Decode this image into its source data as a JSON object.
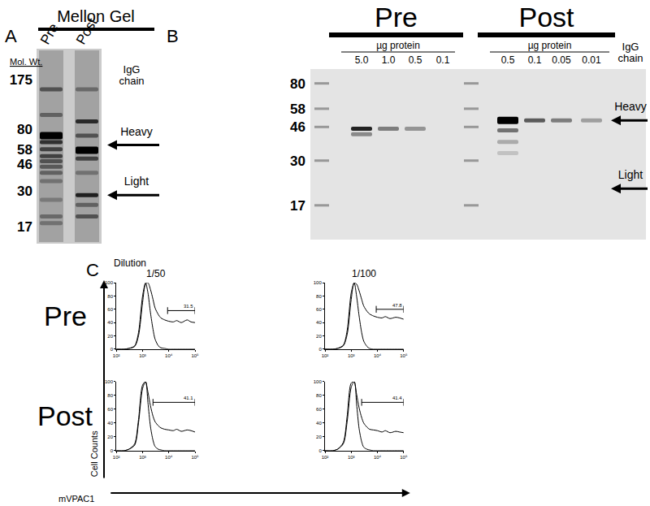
{
  "panel_a": {
    "label": "A",
    "title": "Mellon Gel",
    "lanes": [
      {
        "name": "Pre",
        "bands": [
          {
            "mw": 150,
            "intensity": 0.5
          },
          {
            "mw": 100,
            "intensity": 0.4
          },
          {
            "mw": 72,
            "intensity": 1.0
          },
          {
            "mw": 65,
            "intensity": 0.7
          },
          {
            "mw": 58,
            "intensity": 0.6
          },
          {
            "mw": 52,
            "intensity": 0.6
          },
          {
            "mw": 48,
            "intensity": 0.5
          },
          {
            "mw": 44,
            "intensity": 0.45
          },
          {
            "mw": 40,
            "intensity": 0.4
          },
          {
            "mw": 35,
            "intensity": 0.3
          },
          {
            "mw": 26,
            "intensity": 0.25
          },
          {
            "mw": 20,
            "intensity": 0.35
          },
          {
            "mw": 18,
            "intensity": 0.3
          }
        ]
      },
      {
        "name": "Post",
        "bands": [
          {
            "mw": 150,
            "intensity": 0.35
          },
          {
            "mw": 90,
            "intensity": 0.75
          },
          {
            "mw": 72,
            "intensity": 0.5
          },
          {
            "mw": 57,
            "intensity": 1.0
          },
          {
            "mw": 50,
            "intensity": 0.6
          },
          {
            "mw": 40,
            "intensity": 0.3
          },
          {
            "mw": 28,
            "intensity": 0.8
          },
          {
            "mw": 24,
            "intensity": 0.4
          },
          {
            "mw": 20,
            "intensity": 0.5
          }
        ]
      }
    ],
    "mw_title": "Mol. Wt.",
    "ylim": [
      13,
      285
    ],
    "yticks": [
      175,
      80,
      58,
      46,
      30,
      17
    ],
    "chain_title": "IgG chain",
    "chains": [
      {
        "label": "Heavy",
        "mw": 62
      },
      {
        "label": "Light",
        "mw": 28
      }
    ]
  },
  "panel_b": {
    "label": "B",
    "ylim": [
      11,
      96
    ],
    "yticks": [
      80,
      58,
      46,
      30,
      17
    ],
    "chain_title": "IgG chain",
    "chains": [
      {
        "label": "Heavy",
        "mw": 50
      },
      {
        "label": "Light",
        "mw": 21
      }
    ],
    "groups": [
      {
        "title": "Pre",
        "unit": "µg protein",
        "lanes": [
          {
            "amount": "5.0",
            "bands": [
              {
                "mw": 45,
                "intensity": 0.85
              },
              {
                "mw": 42,
                "intensity": 0.4
              }
            ]
          },
          {
            "amount": "1.0",
            "bands": [
              {
                "mw": 45,
                "intensity": 0.45
              }
            ]
          },
          {
            "amount": "0.5",
            "bands": [
              {
                "mw": 45,
                "intensity": 0.35
              }
            ]
          },
          {
            "amount": "0.1",
            "bands": []
          }
        ]
      },
      {
        "title": "Post",
        "unit": "µg protein",
        "lanes": [
          {
            "amount": "0.5",
            "bands": [
              {
                "mw": 50,
                "intensity": 1.0
              },
              {
                "mw": 44,
                "intensity": 0.5
              },
              {
                "mw": 38,
                "intensity": 0.25
              },
              {
                "mw": 33,
                "intensity": 0.15
              }
            ]
          },
          {
            "amount": "0.1",
            "bands": [
              {
                "mw": 50,
                "intensity": 0.6
              }
            ]
          },
          {
            "amount": "0.05",
            "bands": [
              {
                "mw": 50,
                "intensity": 0.45
              }
            ]
          },
          {
            "amount": "0.01",
            "bands": [
              {
                "mw": 50,
                "intensity": 0.3
              }
            ]
          }
        ]
      }
    ]
  },
  "panel_c": {
    "label": "C",
    "dilution_title": "Dilution",
    "dilutions": [
      "1/50",
      "1/100"
    ],
    "rows": [
      "Pre",
      "Post"
    ],
    "y_title": "Cell Counts",
    "x_title": "mVPAC1"
  },
  "chart_data": [
    {
      "type": "line",
      "log": "x",
      "x": [
        100,
        200,
        300,
        500,
        700,
        1000,
        1300,
        1600,
        2000,
        2500,
        3000,
        4000,
        5000,
        7000,
        10000,
        15000,
        20000,
        30000,
        50000,
        70000,
        100000
      ],
      "xlim": [
        100,
        100000
      ],
      "xticks": [
        {
          "value": 100,
          "label": "10²"
        },
        {
          "value": 1000,
          "label": "10³"
        },
        {
          "value": 10000,
          "label": "10⁴"
        },
        {
          "value": 100000,
          "label": "10⁵"
        }
      ],
      "ylim": [
        0,
        100
      ],
      "yticks": [
        0,
        20,
        40,
        60,
        80,
        100
      ],
      "series": [
        {
          "color": "#000000",
          "values": [
            0,
            0,
            1,
            5,
            25,
            80,
            100,
            85,
            55,
            30,
            15,
            5,
            2,
            1,
            0,
            0,
            0,
            0,
            0,
            0,
            0
          ]
        },
        {
          "color": "#000000",
          "values": [
            0,
            0,
            1,
            4,
            20,
            70,
            98,
            100,
            90,
            75,
            62,
            52,
            47,
            44,
            42,
            41,
            43,
            40,
            44,
            41,
            40
          ]
        }
      ],
      "gate": {
        "x": [
          9000,
          100000
        ],
        "y": 58,
        "label": "31.5"
      }
    },
    {
      "type": "line",
      "log": "x",
      "x": [
        100,
        200,
        300,
        500,
        700,
        1000,
        1300,
        1600,
        2000,
        2500,
        3000,
        4000,
        5000,
        7000,
        10000,
        15000,
        20000,
        30000,
        50000,
        70000,
        100000
      ],
      "xlim": [
        100,
        100000
      ],
      "xticks": [
        {
          "value": 100,
          "label": "10²"
        },
        {
          "value": 1000,
          "label": "10³"
        },
        {
          "value": 10000,
          "label": "10⁴"
        },
        {
          "value": 100000,
          "label": "10⁵"
        }
      ],
      "ylim": [
        0,
        100
      ],
      "yticks": [
        0,
        20,
        40,
        60,
        80,
        100
      ],
      "series": [
        {
          "color": "#000000",
          "values": [
            0,
            0,
            1,
            6,
            28,
            85,
            100,
            80,
            50,
            25,
            12,
            4,
            1,
            0,
            0,
            0,
            0,
            0,
            0,
            0,
            0
          ]
        },
        {
          "color": "#000000",
          "values": [
            0,
            0,
            1,
            5,
            22,
            75,
            100,
            98,
            88,
            75,
            65,
            57,
            53,
            50,
            48,
            47,
            49,
            46,
            48,
            47,
            45
          ]
        }
      ],
      "gate": {
        "x": [
          9000,
          100000
        ],
        "y": 60,
        "label": "47.8"
      }
    },
    {
      "type": "line",
      "log": "x",
      "x": [
        100,
        200,
        300,
        500,
        700,
        1000,
        1300,
        1600,
        2000,
        2500,
        3000,
        4000,
        5000,
        7000,
        10000,
        15000,
        20000,
        30000,
        50000,
        70000,
        100000
      ],
      "xlim": [
        100,
        100000
      ],
      "xticks": [
        {
          "value": 100,
          "label": "10²"
        },
        {
          "value": 1000,
          "label": "10³"
        },
        {
          "value": 10000,
          "label": "10⁴"
        },
        {
          "value": 100000,
          "label": "10⁵"
        }
      ],
      "ylim": [
        0,
        100
      ],
      "yticks": [
        0,
        20,
        40,
        60,
        80,
        100
      ],
      "series": [
        {
          "color": "#000000",
          "values": [
            0,
            0,
            2,
            10,
            45,
            95,
            100,
            70,
            35,
            15,
            6,
            2,
            1,
            0,
            0,
            0,
            0,
            0,
            0,
            0,
            0
          ]
        },
        {
          "color": "#000000",
          "values": [
            0,
            0,
            2,
            8,
            40,
            90,
            100,
            85,
            65,
            50,
            42,
            36,
            33,
            31,
            30,
            29,
            31,
            28,
            30,
            29,
            27
          ]
        }
      ],
      "gate": {
        "x": [
          2500,
          100000
        ],
        "y": 70,
        "label": "41.1"
      }
    },
    {
      "type": "line",
      "log": "x",
      "x": [
        100,
        200,
        300,
        500,
        700,
        1000,
        1300,
        1600,
        2000,
        2500,
        3000,
        4000,
        5000,
        7000,
        10000,
        15000,
        20000,
        30000,
        50000,
        70000,
        100000
      ],
      "xlim": [
        100,
        100000
      ],
      "xticks": [
        {
          "value": 100,
          "label": "10²"
        },
        {
          "value": 1000,
          "label": "10³"
        },
        {
          "value": 10000,
          "label": "10⁴"
        },
        {
          "value": 100000,
          "label": "10⁵"
        }
      ],
      "ylim": [
        0,
        100
      ],
      "yticks": [
        0,
        20,
        40,
        60,
        80,
        100
      ],
      "series": [
        {
          "color": "#000000",
          "values": [
            0,
            0,
            2,
            12,
            50,
            98,
            100,
            68,
            32,
            13,
            5,
            2,
            1,
            0,
            0,
            0,
            0,
            0,
            0,
            0,
            0
          ]
        },
        {
          "color": "#000000",
          "values": [
            0,
            0,
            2,
            10,
            42,
            92,
            100,
            82,
            62,
            48,
            40,
            34,
            31,
            30,
            29,
            27,
            29,
            26,
            28,
            27,
            26
          ]
        }
      ],
      "gate": {
        "x": [
          2500,
          100000
        ],
        "y": 70,
        "label": "41.4"
      }
    }
  ]
}
